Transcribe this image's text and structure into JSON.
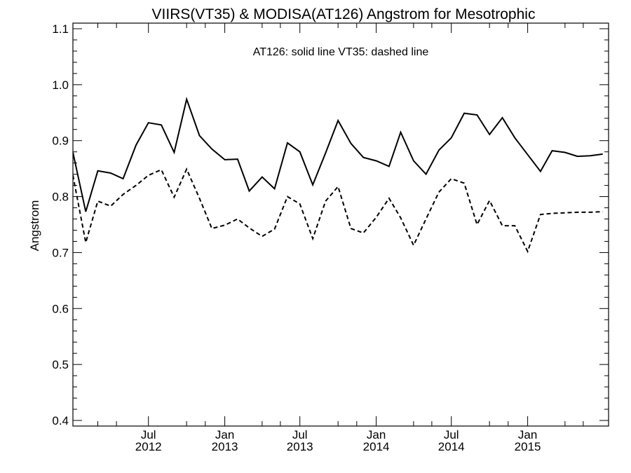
{
  "chart_data": {
    "type": "line",
    "title": "VIIRS(VT35) & MODISA(AT126)  Angstrom for Mesotrophic",
    "annotation": "AT126: solid line   VT35: dashed line",
    "xlabel": "",
    "ylabel": "Angstrom",
    "ylim": [
      0.39,
      1.11
    ],
    "xlim": [
      "2012-01-01",
      "2015-07-15"
    ],
    "y_ticks": [
      "0.4",
      "0.5",
      "0.6",
      "0.7",
      "0.8",
      "0.9",
      "1.0",
      "1.1"
    ],
    "x_ticks": [
      {
        "date": "2012-07-01",
        "month": "Jul",
        "year": "2012"
      },
      {
        "date": "2013-01-01",
        "month": "Jan",
        "year": "2013"
      },
      {
        "date": "2013-07-01",
        "month": "Jul",
        "year": "2013"
      },
      {
        "date": "2014-01-01",
        "month": "Jan",
        "year": "2014"
      },
      {
        "date": "2014-07-01",
        "month": "Jul",
        "year": "2014"
      },
      {
        "date": "2015-01-01",
        "month": "Jan",
        "year": "2015"
      }
    ],
    "x": [
      "2012-01-01",
      "2012-02-01",
      "2012-03-01",
      "2012-04-01",
      "2012-05-01",
      "2012-06-01",
      "2012-07-01",
      "2012-08-01",
      "2012-09-01",
      "2012-10-01",
      "2012-11-01",
      "2012-12-01",
      "2013-01-01",
      "2013-02-01",
      "2013-03-01",
      "2013-04-01",
      "2013-05-01",
      "2013-06-01",
      "2013-07-01",
      "2013-08-01",
      "2013-09-01",
      "2013-10-01",
      "2013-11-01",
      "2013-12-01",
      "2014-01-01",
      "2014-02-01",
      "2014-03-01",
      "2014-04-01",
      "2014-05-01",
      "2014-06-01",
      "2014-07-01",
      "2014-08-01",
      "2014-09-01",
      "2014-10-01",
      "2014-11-01",
      "2014-12-01",
      "2015-01-01",
      "2015-02-01",
      "2015-03-01",
      "2015-04-01",
      "2015-05-01",
      "2015-06-01",
      "2015-07-01"
    ],
    "series": [
      {
        "name": "AT126",
        "style": "solid",
        "values": [
          0.879,
          0.773,
          0.846,
          0.842,
          0.832,
          0.892,
          0.932,
          0.928,
          0.879,
          0.974,
          0.909,
          0.885,
          0.866,
          0.867,
          0.81,
          0.835,
          0.814,
          0.896,
          0.88,
          0.821,
          0.878,
          0.936,
          0.895,
          0.87,
          0.864,
          0.854,
          0.915,
          0.864,
          0.84,
          0.883,
          0.905,
          0.949,
          0.946,
          0.911,
          0.941,
          0.905,
          0.875,
          0.845,
          0.882,
          0.879,
          0.872,
          0.873,
          0.876
        ]
      },
      {
        "name": "VT35",
        "style": "dashed",
        "values": [
          0.838,
          0.718,
          0.792,
          0.783,
          0.804,
          0.82,
          0.838,
          0.848,
          0.799,
          0.849,
          0.797,
          0.743,
          0.749,
          0.76,
          0.744,
          0.729,
          0.742,
          0.8,
          0.787,
          0.725,
          0.792,
          0.818,
          0.743,
          0.735,
          0.763,
          0.797,
          0.762,
          0.713,
          0.76,
          0.808,
          0.832,
          0.824,
          0.75,
          0.793,
          0.748,
          0.748,
          0.702,
          0.768,
          0.77,
          0.771,
          0.772,
          0.772,
          0.773
        ]
      }
    ],
    "grid": false,
    "legend": "none",
    "line_color": "#000000"
  }
}
